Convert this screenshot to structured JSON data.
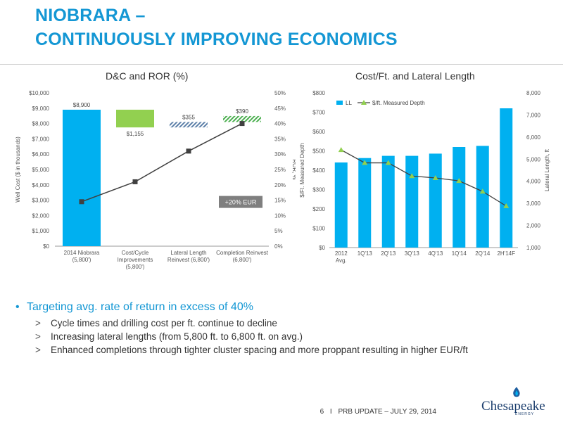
{
  "page": {
    "title_line1": "NIOBRARA –",
    "title_line2": "CONTINUOUSLY IMPROVING ECONOMICS"
  },
  "chart_data": [
    {
      "type": "bar",
      "title": "D&C and ROR (%)",
      "ylabel": "Well Cost ($ in thousands)",
      "y2label": "ROR, %",
      "ylim": [
        0,
        10000
      ],
      "y2lim": [
        0,
        50
      ],
      "y_ticks": [
        "$0",
        "$1,000",
        "$2,000",
        "$3,000",
        "$4,000",
        "$5,000",
        "$6,000",
        "$7,000",
        "$8,000",
        "$9,000",
        "$10,000"
      ],
      "y2_ticks": [
        "0%",
        "5%",
        "10%",
        "15%",
        "20%",
        "25%",
        "30%",
        "35%",
        "40%",
        "45%",
        "50%"
      ],
      "categories": [
        "2014 Niobrara (5,800')",
        "Cost/Cycle Improvements (5,800')",
        "Lateral Length Reinvest (6,800')",
        "Completion Reinvest (6,800')"
      ],
      "category_lines": [
        [
          "2014 Niobrara",
          "(5,800')"
        ],
        [
          "Cost/Cycle",
          "Improvements",
          "(5,800')"
        ],
        [
          "Lateral Length",
          "Reinvest (6,800')"
        ],
        [
          "Completion Reinvest",
          "(6,800')"
        ]
      ],
      "waterfall": [
        {
          "label": "$8,900",
          "from": 0,
          "to": 8900,
          "style": "solid",
          "color": "#00b0f0",
          "label_pos": "above"
        },
        {
          "label": "$1,155",
          "from": 7745,
          "to": 8900,
          "style": "solid",
          "color": "#92d050",
          "label_pos": "below"
        },
        {
          "label": "$355",
          "from": 7745,
          "to": 8100,
          "style": "hatch",
          "color": "#5b7fa8",
          "label_pos": "above"
        },
        {
          "label": "$390",
          "from": 8100,
          "to": 8490,
          "style": "hatch",
          "color": "#4caf50",
          "label_pos": "above"
        }
      ],
      "ror_series": {
        "name": "ROR",
        "values": [
          14.5,
          21,
          31,
          40
        ],
        "color": "#404040"
      },
      "annotation": "+20% EUR"
    },
    {
      "type": "bar+line",
      "title": "Cost/Ft. and Lateral Length",
      "ylabel": "$/Ft. Measured Depth",
      "y2label": "Lateral Length, ft",
      "ylim": [
        0,
        800
      ],
      "y2lim": [
        1000,
        8000
      ],
      "y_ticks": [
        "$0",
        "$100",
        "$200",
        "$300",
        "$400",
        "$500",
        "$600",
        "$700",
        "$800"
      ],
      "y2_ticks": [
        "1,000",
        "2,000",
        "3,000",
        "4,000",
        "5,000",
        "6,000",
        "7,000",
        "8,000"
      ],
      "categories": [
        "2012 Avg.",
        "1Q'13",
        "2Q'13",
        "3Q'13",
        "4Q'13",
        "1Q'14",
        "2Q'14",
        "2H'14F"
      ],
      "category_lines": [
        [
          "2012",
          "Avg."
        ],
        [
          "1Q'13"
        ],
        [
          "2Q'13"
        ],
        [
          "3Q'13"
        ],
        [
          "4Q'13"
        ],
        [
          "1Q'14"
        ],
        [
          "2Q'14"
        ],
        [
          "2H'14F"
        ]
      ],
      "series": [
        {
          "name": "LL",
          "axis": "right",
          "kind": "bar",
          "color": "#00b0f0",
          "values": [
            4850,
            5050,
            5150,
            5150,
            5250,
            5550,
            5600,
            7300
          ]
        },
        {
          "name": "$/ft. Measured Depth",
          "axis": "left",
          "kind": "line",
          "color": "#404040",
          "marker_color": "#92d050",
          "values": [
            505,
            438,
            438,
            370,
            360,
            345,
            290,
            215
          ]
        }
      ],
      "legend": "top-left"
    }
  ],
  "bullets": {
    "main": "Targeting avg. rate of return in excess of 40%",
    "main_marker": "•",
    "sub_marker": ">",
    "sub": [
      "Cycle times and drilling cost per ft. continue to decline",
      "Increasing lateral lengths (from 5,800 ft. to 6,800 ft. on avg.)",
      "Enhanced completions through tighter cluster spacing and more proppant resulting in higher EUR/ft"
    ]
  },
  "footer": {
    "page_number": "6",
    "separator": "I",
    "text": "PRB UPDATE – JULY 29, 2014",
    "logo_text": "Chesapeake",
    "logo_sub": "ENERGY"
  }
}
